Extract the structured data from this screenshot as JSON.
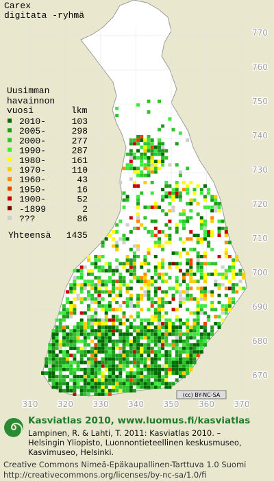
{
  "map": {
    "title": [
      "Carex",
      "digitata -ryhmä"
    ],
    "legend": {
      "header": [
        "Uusimman",
        "havainnon",
        "vuosi"
      ],
      "count_header": "lkm",
      "rows": [
        {
          "label": "2010-",
          "count": 103,
          "color": "#006a00"
        },
        {
          "label": "2005-",
          "count": 298,
          "color": "#1e9c1e"
        },
        {
          "label": "2000-",
          "count": 277,
          "color": "#2fc42f"
        },
        {
          "label": "1990-",
          "count": 287,
          "color": "#3fe83f"
        },
        {
          "label": "1980-",
          "count": 161,
          "color": "#ffff00"
        },
        {
          "label": "1970-",
          "count": 110,
          "color": "#ffcc00"
        },
        {
          "label": "1960-",
          "count": 43,
          "color": "#ff8a00"
        },
        {
          "label": "1950-",
          "count": 16,
          "color": "#f04000"
        },
        {
          "label": "1900-",
          "count": 52,
          "color": "#cc0000"
        },
        {
          "label": "-1899",
          "count": 2,
          "color": "#7a0000"
        },
        {
          "label": "???",
          "count": 86,
          "color": "#cfcfcf"
        }
      ],
      "total_label": "Yhteensä",
      "total": 1435
    },
    "grid": {
      "y_labels": [
        770,
        760,
        750,
        740,
        730,
        720,
        710,
        700,
        690,
        680,
        670
      ],
      "x_labels": [
        310,
        320,
        330,
        340,
        350,
        360,
        370
      ]
    },
    "license_badge": "(cc) BY-NC-SA"
  },
  "footer": {
    "brand": "Kasviatlas 2010, www.luomus.fi/kasviatlas",
    "citation": [
      "Lampinen, R. & Lahti, T. 2011: Kasviatlas 2010. –",
      "Helsingin Yliopisto, Luonnontieteellinen keskusmuseo,",
      "Kasvimuseo, Helsinki."
    ],
    "license": [
      "Creative Commons Nimeä-Epäkaupallinen-Tarttuva 1.0 Suomi",
      "http://creativecommons.org/licenses/by-nc-sa/1.0/fi"
    ]
  }
}
